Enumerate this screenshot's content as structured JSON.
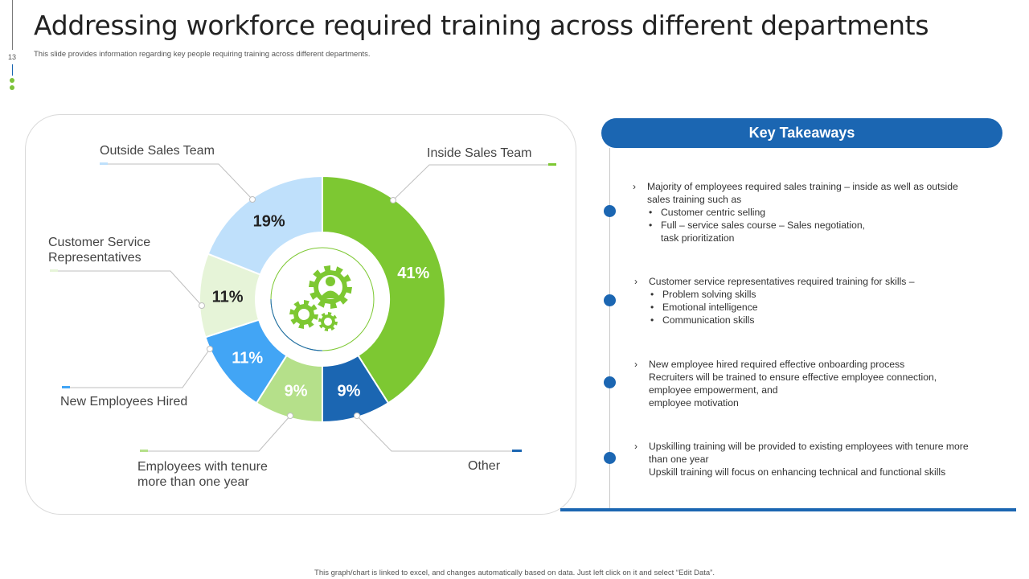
{
  "slide": {
    "title": "Addressing workforce required training across different departments",
    "subtitle": "This slide provides information regarding key people requiring training across different departments.",
    "page_number": "13",
    "footer": "This graph/chart is linked to excel, and changes automatically based on data. Just left click on it and select “Edit Data”."
  },
  "chart_data": {
    "type": "pie",
    "donut": true,
    "center_icon": "gears-person-icon",
    "slices": [
      {
        "label": "Inside Sales Team",
        "value": 41,
        "display": "41%",
        "color": "#7dc832",
        "text_color": "#ffffff"
      },
      {
        "label": "Other",
        "value": 9,
        "display": "9%",
        "color": "#1b66b2",
        "text_color": "#ffffff"
      },
      {
        "label": "Employees with tenure\nmore than one year",
        "value": 9,
        "display": "9%",
        "color": "#b5e08a",
        "text_color": "#ffffff"
      },
      {
        "label": "New Employees Hired",
        "value": 11,
        "display": "11%",
        "color": "#42a5f5",
        "text_color": "#ffffff"
      },
      {
        "label": "Customer Service\nRepresentatives",
        "value": 11,
        "display": "11%",
        "color": "#e6f4d8",
        "text_color": "#222222"
      },
      {
        "label": "Outside Sales Team",
        "value": 19,
        "display": "19%",
        "color": "#bfe0fb",
        "text_color": "#222222"
      }
    ]
  },
  "takeaways": {
    "header": "Key Takeaways",
    "item1": {
      "line1": "Majority of employees required  sales training – inside as well as outside",
      "line2": "sales training  such as",
      "b1": "Customer centric selling",
      "b2": "Full – service sales course – Sales negotiation,",
      "b2cont": "task prioritization"
    },
    "item2": {
      "line1": "Customer service representatives  required  training for skills –",
      "b1": "Problem solving skills",
      "b2": "Emotional intelligence",
      "b3": "Communication skills"
    },
    "item3": {
      "line1": "New employee hired required effective  onboarding process",
      "line2": "Recruiters will be trained to ensure effective  employee connection,",
      "line3": "employee empowerment,  and",
      "line4": "employee motivation"
    },
    "item4": {
      "line1": "Upskilling training will be provided  to existing employees with tenure  more",
      "line2": "than one year",
      "line3": "Upskill training will focus on enhancing technical and functional skills"
    }
  }
}
